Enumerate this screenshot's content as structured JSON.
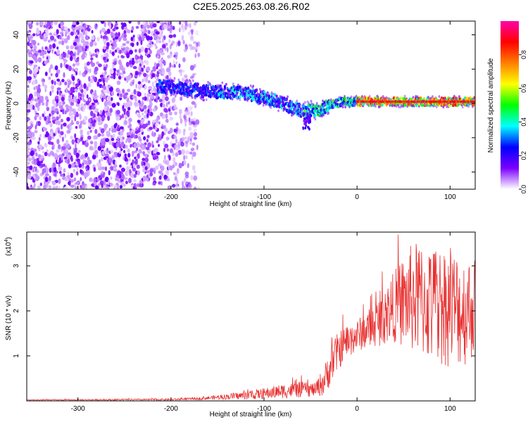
{
  "title": "C2E5.2025.263.08.26.R02",
  "chart_data": [
    {
      "type": "heatmap",
      "name": "spectrogram",
      "xlabel": "Height of straight line (km)",
      "ylabel": "Frequency (Hz)",
      "xlim": [
        -355,
        127
      ],
      "ylim": [
        -50,
        48
      ],
      "xticks": [
        -300,
        -200,
        -100,
        0,
        100
      ],
      "xtick_labels": [
        "-300",
        "-200",
        "-100",
        "0",
        "100"
      ],
      "yticks": [
        -40,
        -20,
        0,
        20,
        40
      ],
      "ytick_labels": [
        "-40",
        "-20",
        "0",
        "20",
        "40"
      ],
      "colorbar": {
        "label": "Normalized spectral amplitude",
        "range": [
          0,
          1
        ],
        "ticks": [
          0.0,
          0.2,
          0.4,
          0.6,
          0.8
        ],
        "tick_labels": [
          "0.0",
          "0.2",
          "0.4",
          "0.6",
          "0.8"
        ],
        "stops": [
          "#ffffff",
          "#7b00ff",
          "#0000ff",
          "#00ffff",
          "#00ff00",
          "#ffff00",
          "#ff8000",
          "#ff0000",
          "#ff00aa"
        ]
      },
      "features": {
        "noise_region_x": [
          -355,
          -180
        ],
        "signal_track": [
          {
            "x": -210,
            "y": 10
          },
          {
            "x": -160,
            "y": 7
          },
          {
            "x": -120,
            "y": 6
          },
          {
            "x": -90,
            "y": 2
          },
          {
            "x": -60,
            "y": -4
          },
          {
            "x": -40,
            "y": -4
          },
          {
            "x": -30,
            "y": -1
          },
          {
            "x": -15,
            "y": 1
          },
          {
            "x": 0,
            "y": 1
          },
          {
            "x": 50,
            "y": 1
          },
          {
            "x": 127,
            "y": 1
          }
        ],
        "peak_amplitude_x": [
          0,
          127
        ]
      }
    },
    {
      "type": "line",
      "name": "snr",
      "xlabel": "Height of straight line (km)",
      "ylabel": "SNR (10 * v/v)",
      "scale_label": "(x10",
      "scale_exp": "4",
      "scale_close": ")",
      "xlim": [
        -355,
        127
      ],
      "ylim": [
        0,
        3.75
      ],
      "xticks": [
        -300,
        -200,
        -100,
        0,
        100
      ],
      "xtick_labels": [
        "-300",
        "-200",
        "-100",
        "0",
        "100"
      ],
      "yticks": [
        1,
        2,
        3
      ],
      "ytick_labels": [
        "1",
        "2",
        "3"
      ],
      "color": "#e83030",
      "envelope": {
        "x": [
          -355,
          -200,
          -170,
          -150,
          -120,
          -100,
          -80,
          -60,
          -45,
          -35,
          -25,
          -15,
          0,
          20,
          40,
          60,
          80,
          100,
          115,
          127
        ],
        "mean": [
          0.02,
          0.03,
          0.05,
          0.08,
          0.12,
          0.16,
          0.22,
          0.25,
          0.25,
          0.45,
          0.95,
          1.25,
          1.45,
          1.7,
          2.1,
          2.3,
          2.15,
          2.1,
          2.0,
          2.1
        ],
        "spread": [
          0.01,
          0.02,
          0.03,
          0.05,
          0.09,
          0.12,
          0.16,
          0.18,
          0.15,
          0.35,
          0.45,
          0.4,
          0.35,
          0.5,
          0.8,
          1.25,
          1.35,
          1.35,
          1.25,
          1.1
        ]
      }
    }
  ]
}
